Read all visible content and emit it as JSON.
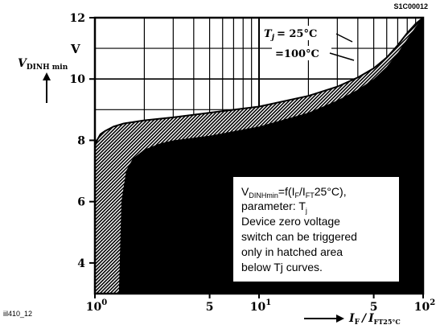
{
  "chart_data": {
    "type": "area",
    "figure_id": "S1C00012",
    "footer_id": "iil410_12",
    "y_axis": {
      "symbol": "V",
      "subscript": "DINH min",
      "unit": "V",
      "range": [
        3,
        12
      ],
      "ticks": [
        4,
        6,
        8,
        10,
        12
      ]
    },
    "x_axis": {
      "symbol": "I",
      "subscript_num": "F",
      "subscript_den": "FT25°C",
      "scale": "log",
      "range": [
        1,
        100
      ],
      "tick_labels": [
        {
          "value": 1,
          "mantissa": "10",
          "exp": "0"
        },
        {
          "value": 5,
          "mantissa": "5",
          "exp": ""
        },
        {
          "value": 10,
          "mantissa": "10",
          "exp": "1"
        },
        {
          "value": 50,
          "mantissa": "5",
          "exp": ""
        },
        {
          "value": 100,
          "mantissa": "10",
          "exp": "2"
        }
      ]
    },
    "series": [
      {
        "name": "Tj = 25°C",
        "x": [
          1,
          1.03,
          1.08,
          1.15,
          1.3,
          1.5,
          2,
          3,
          5,
          10,
          20,
          30,
          40,
          50,
          60,
          70,
          80,
          90,
          100
        ],
        "y": [
          7.8,
          8.0,
          8.2,
          8.3,
          8.45,
          8.55,
          8.65,
          8.75,
          8.9,
          9.1,
          9.45,
          9.75,
          10.05,
          10.35,
          10.7,
          11.1,
          11.5,
          11.8,
          12.0
        ]
      },
      {
        "name": "Tj = 100°C",
        "x": [
          1.4,
          1.45,
          1.55,
          1.7,
          2,
          2.5,
          3,
          5,
          10,
          20,
          30,
          40,
          50,
          60,
          70,
          80,
          90,
          100
        ],
        "y": [
          3.0,
          6.0,
          7.0,
          7.4,
          7.7,
          7.9,
          8.0,
          8.15,
          8.45,
          8.9,
          9.3,
          9.65,
          10.0,
          10.4,
          10.85,
          11.3,
          11.7,
          12.0
        ]
      }
    ],
    "curve_labels": [
      {
        "series": "Tj = 25°C",
        "prefix": "T",
        "sub": "j",
        "text": "= 25°C"
      },
      {
        "series": "Tj = 100°C",
        "prefix": "",
        "sub": "",
        "text": "=100°C"
      }
    ],
    "annotation": {
      "line1_main": "V",
      "line1_sub1": "DINHmin",
      "line1_mid": "=f(I",
      "line1_sub2": "F",
      "line1_mid2": "/I",
      "line1_sub3": "FT",
      "line1_end": "25°C),",
      "line2_main": "parameter: T",
      "line2_sub": "j",
      "line3": "Device zero voltage",
      "line4": "switch can be triggered",
      "line5": "only in hatched area",
      "line6": "below Tj curves."
    },
    "grid": true
  }
}
